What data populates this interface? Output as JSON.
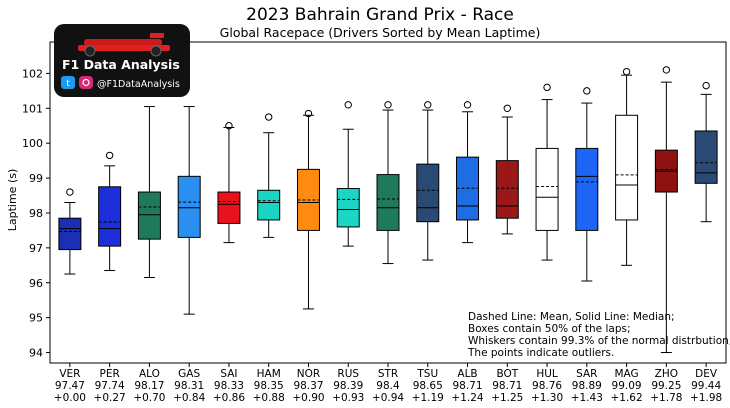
{
  "logo": {
    "brand": "F1 Data Analysis",
    "handle": "@F1DataAnalysis"
  },
  "chart_data": {
    "type": "box",
    "title": "2023 Bahrain Grand Prix - Race",
    "subtitle": "Global Racepace (Drivers Sorted by Mean Laptime)",
    "ylabel": "Laptime (s)",
    "xlabel": "",
    "ylim": [
      93.7,
      102.9
    ],
    "yticks": [
      94,
      95,
      96,
      97,
      98,
      99,
      100,
      101,
      102
    ],
    "grid": false,
    "legend_note": [
      "Dashed Line: Mean, Solid Line: Median;",
      "Boxes contain 50% of the laps;",
      "Whiskers contain 99.3% of the normal distrbution;",
      "The points indicate outliers."
    ],
    "drivers": [
      {
        "code": "VER",
        "mean_label": "97.47",
        "gap_label": "+0.00",
        "color": "#1a2fb3",
        "q1": 96.95,
        "median": 97.55,
        "q3": 97.85,
        "mean": 97.47,
        "wlo": 96.25,
        "whi": 98.3,
        "outliers": [
          98.6
        ]
      },
      {
        "code": "PER",
        "mean_label": "97.74",
        "gap_label": "+0.27",
        "color": "#1c2fd9",
        "q1": 97.05,
        "median": 97.55,
        "q3": 98.75,
        "mean": 97.74,
        "wlo": 96.35,
        "whi": 99.35,
        "outliers": [
          99.65
        ]
      },
      {
        "code": "ALO",
        "mean_label": "98.17",
        "gap_label": "+0.70",
        "color": "#1f7a5b",
        "q1": 97.25,
        "median": 97.95,
        "q3": 98.6,
        "mean": 98.17,
        "wlo": 96.15,
        "whi": 101.05,
        "outliers": []
      },
      {
        "code": "GAS",
        "mean_label": "98.31",
        "gap_label": "+0.84",
        "color": "#2a8ff0",
        "q1": 97.3,
        "median": 98.15,
        "q3": 99.05,
        "mean": 98.31,
        "wlo": 95.1,
        "whi": 101.05,
        "outliers": []
      },
      {
        "code": "SAI",
        "mean_label": "98.33",
        "gap_label": "+0.86",
        "color": "#e8121c",
        "q1": 97.7,
        "median": 98.25,
        "q3": 98.6,
        "mean": 98.33,
        "wlo": 97.15,
        "whi": 100.45,
        "outliers": [
          100.5
        ]
      },
      {
        "code": "HAM",
        "mean_label": "98.35",
        "gap_label": "+0.88",
        "color": "#1bd3c1",
        "q1": 97.8,
        "median": 98.3,
        "q3": 98.65,
        "mean": 98.35,
        "wlo": 97.3,
        "whi": 100.3,
        "outliers": [
          100.75
        ]
      },
      {
        "code": "NOR",
        "mean_label": "98.37",
        "gap_label": "+0.90",
        "color": "#ff8a12",
        "q1": 97.5,
        "median": 98.3,
        "q3": 99.25,
        "mean": 98.37,
        "wlo": 95.25,
        "whi": 100.8,
        "outliers": [
          100.85
        ]
      },
      {
        "code": "RUS",
        "mean_label": "98.39",
        "gap_label": "+0.93",
        "color": "#1ad6c3",
        "q1": 97.6,
        "median": 98.1,
        "q3": 98.7,
        "mean": 98.39,
        "wlo": 97.05,
        "whi": 100.4,
        "outliers": [
          101.1
        ]
      },
      {
        "code": "STR",
        "mean_label": "98.4",
        "gap_label": "+0.94",
        "color": "#1f7a5b",
        "q1": 97.5,
        "median": 98.15,
        "q3": 99.1,
        "mean": 98.4,
        "wlo": 96.55,
        "whi": 100.95,
        "outliers": [
          101.1
        ]
      },
      {
        "code": "TSU",
        "mean_label": "98.65",
        "gap_label": "+1.19",
        "color": "#2a4a74",
        "q1": 97.75,
        "median": 98.15,
        "q3": 99.4,
        "mean": 98.65,
        "wlo": 96.65,
        "whi": 100.95,
        "outliers": [
          101.1
        ]
      },
      {
        "code": "ALB",
        "mean_label": "98.71",
        "gap_label": "+1.24",
        "color": "#1f6de3",
        "q1": 97.8,
        "median": 98.2,
        "q3": 99.6,
        "mean": 98.71,
        "wlo": 97.15,
        "whi": 100.9,
        "outliers": [
          101.1
        ]
      },
      {
        "code": "BOT",
        "mean_label": "98.71",
        "gap_label": "+1.25",
        "color": "#9b1818",
        "q1": 97.85,
        "median": 98.2,
        "q3": 99.5,
        "mean": 98.71,
        "wlo": 97.4,
        "whi": 100.75,
        "outliers": [
          101.0
        ]
      },
      {
        "code": "HUL",
        "mean_label": "98.76",
        "gap_label": "+1.30",
        "color": "#ffffff",
        "q1": 97.5,
        "median": 98.45,
        "q3": 99.85,
        "mean": 98.76,
        "wlo": 96.65,
        "whi": 101.25,
        "outliers": [
          101.6
        ]
      },
      {
        "code": "SAR",
        "mean_label": "98.89",
        "gap_label": "+1.43",
        "color": "#1d66f5",
        "q1": 97.5,
        "median": 99.05,
        "q3": 99.85,
        "mean": 98.89,
        "wlo": 96.05,
        "whi": 101.15,
        "outliers": [
          101.5
        ]
      },
      {
        "code": "MAG",
        "mean_label": "99.09",
        "gap_label": "+1.62",
        "color": "#ffffff",
        "q1": 97.8,
        "median": 98.8,
        "q3": 100.8,
        "mean": 99.09,
        "wlo": 96.5,
        "whi": 101.95,
        "outliers": [
          102.05
        ]
      },
      {
        "code": "ZHO",
        "mean_label": "99.25",
        "gap_label": "+1.78",
        "color": "#8f1212",
        "q1": 98.6,
        "median": 99.2,
        "q3": 99.8,
        "mean": 99.25,
        "wlo": 94.0,
        "whi": 101.75,
        "outliers": [
          102.1
        ]
      },
      {
        "code": "DEV",
        "mean_label": "99.44",
        "gap_label": "+1.98",
        "color": "#2a4a74",
        "q1": 98.85,
        "median": 99.15,
        "q3": 100.35,
        "mean": 99.44,
        "wlo": 97.75,
        "whi": 101.4,
        "outliers": [
          101.65
        ]
      }
    ]
  }
}
